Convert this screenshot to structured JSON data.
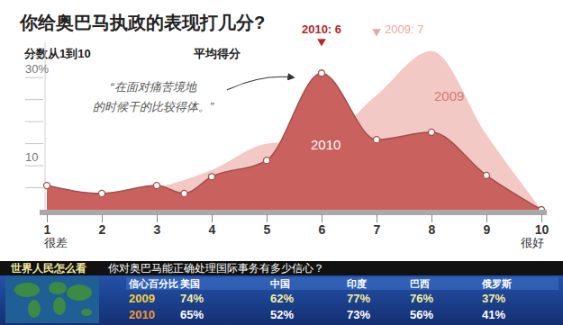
{
  "chart_data": {
    "type": "area",
    "title": "你给奥巴马执政的表现打几分?",
    "subtitle": "分数从1到10",
    "average_heading": "平均得分",
    "annotation": [
      "“在面对痛苦境地",
      "的时候干的比较得体。”"
    ],
    "x_end_labels": [
      "很差",
      "很好"
    ],
    "xlim": [
      1,
      10
    ],
    "xticks": [
      1,
      2,
      3,
      4,
      5,
      6,
      7,
      8,
      9,
      10
    ],
    "ylim": [
      0,
      38
    ],
    "yticks": [
      {
        "value": 5,
        "label": null
      },
      10,
      {
        "value": 15,
        "label": null
      },
      {
        "value": 20,
        "label": null
      },
      {
        "value": 25,
        "label": null
      },
      {
        "value": 30,
        "label": "30%"
      },
      {
        "value": 35,
        "label": null
      }
    ],
    "series": [
      {
        "name": "2009",
        "color": "#f2c9c4",
        "average": 7,
        "average_label": "2009: 7",
        "x": [
          1,
          2,
          3,
          4,
          5,
          6,
          7,
          8,
          9,
          10
        ],
        "values": [
          4,
          3,
          5,
          9,
          15,
          16,
          26,
          36,
          17,
          0
        ]
      },
      {
        "name": "2010",
        "color": "#c9625e",
        "marker": "circle",
        "average": 6,
        "average_label": "2010: 6",
        "x": [
          1,
          2,
          3,
          3.5,
          4,
          5,
          6,
          7,
          8,
          9,
          10
        ],
        "values": [
          5.5,
          3.7,
          5.5,
          3.7,
          7.5,
          11.2,
          31,
          15.9,
          17.6,
          7.8,
          0
        ]
      }
    ]
  },
  "panel": {
    "title": "世界人民怎么看",
    "question": "你对奥巴马能正确处理国际事务有多少信心？",
    "header": [
      "信心百分比",
      "美国",
      "中国",
      "印度",
      "巴西",
      "俄罗斯"
    ],
    "rows": [
      [
        "2009",
        "74%",
        "62%",
        "77%",
        "76%",
        "37%"
      ],
      [
        "2010",
        "65%",
        "52%",
        "73%",
        "56%",
        "41%"
      ]
    ]
  }
}
